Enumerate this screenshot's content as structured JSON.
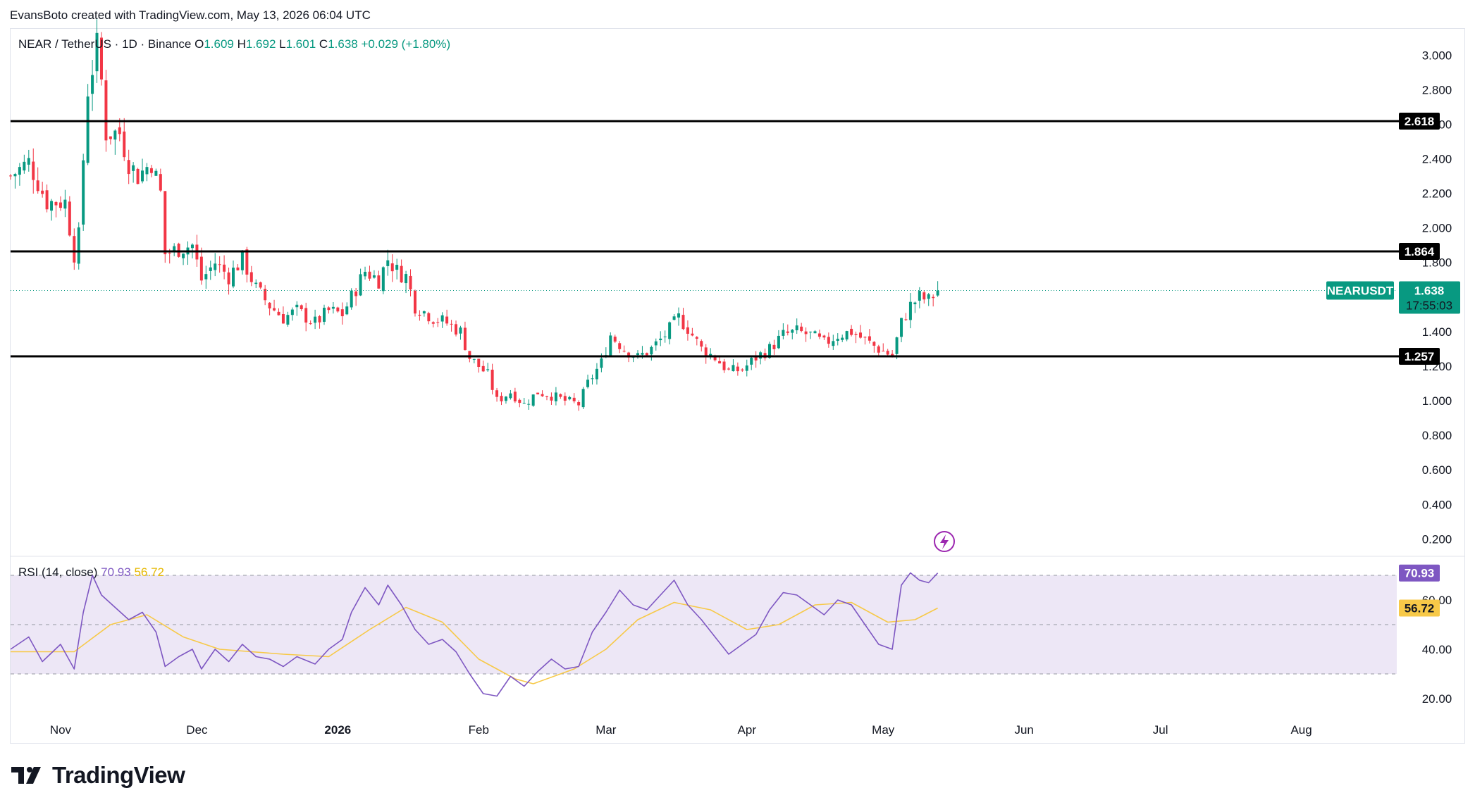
{
  "attribution": "EvansBoto created with TradingView.com, May 13, 2026 06:04 UTC",
  "brand": {
    "name": "TradingView",
    "logo_icon": "tradingview-logo-icon"
  },
  "colors": {
    "up": "#089981",
    "down": "#f23645",
    "rsi": "#7e57c2",
    "rsi_ma": "#f7c948",
    "rsi_band": "#ede7f6",
    "level_line": "#000000",
    "price_tag": "#089981",
    "grid": "#f0f3fa"
  },
  "legend": {
    "symbol": "NEAR / TetherUS · 1D · Binance",
    "o_label": "O",
    "o_value": "1.609",
    "h_label": "H",
    "h_value": "1.692",
    "l_label": "L",
    "l_value": "1.601",
    "c_label": "C",
    "c_value": "1.638",
    "change": "+0.029 (+1.80%)"
  },
  "rsi_legend": {
    "label": "RSI (14, close)",
    "value": "70.93",
    "ma_value": "56.72"
  },
  "alert_icon": "lightning-icon",
  "chart_data": [
    {
      "type": "candlestick",
      "symbol": "NEARUSDT",
      "last_price": "1.638",
      "countdown": "17:55:03",
      "x_axis_labels": [
        "Nov",
        "Dec",
        "2026",
        "Feb",
        "Mar",
        "Apr",
        "May",
        "Jun",
        "Jul",
        "Aug"
      ],
      "x_axis_dates": [
        "2025-11-01",
        "2025-12-01",
        "2026-01-01",
        "2026-02-01",
        "2026-03-01",
        "2026-04-01",
        "2026-05-01",
        "2026-06-01",
        "2026-07-01",
        "2026-08-01"
      ],
      "x_range": [
        "2025-10-21",
        "2026-08-22"
      ],
      "y_ticks": [
        "0.200",
        "0.400",
        "0.600",
        "0.800",
        "1.000",
        "1.200",
        "1.400",
        "1.600",
        "1.800",
        "2.000",
        "2.200",
        "2.400",
        "2.600",
        "2.800",
        "3.000"
      ],
      "ylim": [
        0.1,
        3.15
      ],
      "horizontal_levels": [
        {
          "value": 2.618,
          "label": "2.618"
        },
        {
          "value": 1.864,
          "label": "1.864"
        },
        {
          "value": 1.257,
          "label": "1.257"
        }
      ],
      "grid": false,
      "close_path": [
        [
          "2025-10-21",
          2.3
        ],
        [
          "2025-10-25",
          2.38
        ],
        [
          "2025-10-29",
          2.15
        ],
        [
          "2025-11-02",
          2.15
        ],
        [
          "2025-11-04",
          1.85
        ],
        [
          "2025-11-05",
          1.95
        ],
        [
          "2025-11-06",
          2.4
        ],
        [
          "2025-11-07",
          2.8
        ],
        [
          "2025-11-09",
          3.05
        ],
        [
          "2025-11-10",
          2.85
        ],
        [
          "2025-11-11",
          2.55
        ],
        [
          "2025-11-14",
          2.55
        ],
        [
          "2025-11-16",
          2.38
        ],
        [
          "2025-11-18",
          2.3
        ],
        [
          "2025-11-21",
          2.38
        ],
        [
          "2025-11-23",
          2.2
        ],
        [
          "2025-11-24",
          1.85
        ],
        [
          "2025-11-27",
          1.88
        ],
        [
          "2025-11-30",
          1.9
        ],
        [
          "2025-12-02",
          1.7
        ],
        [
          "2025-12-05",
          1.8
        ],
        [
          "2025-12-08",
          1.72
        ],
        [
          "2025-12-11",
          1.82
        ],
        [
          "2025-12-14",
          1.65
        ],
        [
          "2025-12-17",
          1.55
        ],
        [
          "2025-12-20",
          1.48
        ],
        [
          "2025-12-23",
          1.52
        ],
        [
          "2025-12-27",
          1.45
        ],
        [
          "2025-12-30",
          1.52
        ],
        [
          "2026-01-02",
          1.5
        ],
        [
          "2026-01-04",
          1.6
        ],
        [
          "2026-01-07",
          1.75
        ],
        [
          "2026-01-10",
          1.7
        ],
        [
          "2026-01-12",
          1.82
        ],
        [
          "2026-01-14",
          1.75
        ],
        [
          "2026-01-16",
          1.72
        ],
        [
          "2026-01-18",
          1.55
        ],
        [
          "2026-01-22",
          1.48
        ],
        [
          "2026-01-25",
          1.45
        ],
        [
          "2026-01-28",
          1.4
        ],
        [
          "2026-01-30",
          1.25
        ],
        [
          "2026-02-03",
          1.15
        ],
        [
          "2026-02-05",
          1.0
        ],
        [
          "2026-02-08",
          1.05
        ],
        [
          "2026-02-11",
          0.98
        ],
        [
          "2026-02-14",
          1.05
        ],
        [
          "2026-02-17",
          1.03
        ],
        [
          "2026-02-20",
          1.0
        ],
        [
          "2026-02-23",
          0.98
        ],
        [
          "2026-02-25",
          1.1
        ],
        [
          "2026-02-28",
          1.22
        ],
        [
          "2026-03-02",
          1.38
        ],
        [
          "2026-03-05",
          1.3
        ],
        [
          "2026-03-08",
          1.25
        ],
        [
          "2026-03-11",
          1.3
        ],
        [
          "2026-03-14",
          1.38
        ],
        [
          "2026-03-17",
          1.48
        ],
        [
          "2026-03-19",
          1.42
        ],
        [
          "2026-03-22",
          1.3
        ],
        [
          "2026-03-25",
          1.25
        ],
        [
          "2026-03-28",
          1.17
        ],
        [
          "2026-03-31",
          1.18
        ],
        [
          "2026-04-03",
          1.25
        ],
        [
          "2026-04-06",
          1.3
        ],
        [
          "2026-04-09",
          1.38
        ],
        [
          "2026-04-12",
          1.4
        ],
        [
          "2026-04-15",
          1.38
        ],
        [
          "2026-04-18",
          1.33
        ],
        [
          "2026-04-21",
          1.38
        ],
        [
          "2026-04-24",
          1.4
        ],
        [
          "2026-04-27",
          1.35
        ],
        [
          "2026-04-30",
          1.3
        ],
        [
          "2026-05-03",
          1.26
        ],
        [
          "2026-05-05",
          1.45
        ],
        [
          "2026-05-07",
          1.55
        ],
        [
          "2026-05-09",
          1.6
        ],
        [
          "2026-05-11",
          1.58
        ],
        [
          "2026-05-13",
          1.638
        ]
      ]
    },
    {
      "type": "line",
      "indicator": "RSI",
      "y_ticks": [
        "20.00",
        "40.00",
        "60.00"
      ],
      "ylim": [
        15,
        78
      ],
      "band": [
        30,
        70
      ],
      "mid_line": 50,
      "series": [
        {
          "name": "RSI",
          "value_tag": "70.93",
          "points": [
            [
              "2025-10-21",
              40
            ],
            [
              "2025-10-25",
              45
            ],
            [
              "2025-10-28",
              35
            ],
            [
              "2025-11-01",
              42
            ],
            [
              "2025-11-04",
              32
            ],
            [
              "2025-11-06",
              55
            ],
            [
              "2025-11-08",
              70
            ],
            [
              "2025-11-10",
              62
            ],
            [
              "2025-11-13",
              57
            ],
            [
              "2025-11-16",
              52
            ],
            [
              "2025-11-19",
              55
            ],
            [
              "2025-11-22",
              47
            ],
            [
              "2025-11-24",
              33
            ],
            [
              "2025-11-27",
              37
            ],
            [
              "2025-11-30",
              40
            ],
            [
              "2025-12-02",
              32
            ],
            [
              "2025-12-05",
              40
            ],
            [
              "2025-12-08",
              35
            ],
            [
              "2025-12-11",
              42
            ],
            [
              "2025-12-14",
              37
            ],
            [
              "2025-12-17",
              36
            ],
            [
              "2025-12-20",
              33
            ],
            [
              "2025-12-23",
              37
            ],
            [
              "2025-12-27",
              34
            ],
            [
              "2025-12-30",
              40
            ],
            [
              "2026-01-02",
              44
            ],
            [
              "2026-01-04",
              55
            ],
            [
              "2026-01-07",
              65
            ],
            [
              "2026-01-10",
              58
            ],
            [
              "2026-01-12",
              66
            ],
            [
              "2026-01-15",
              58
            ],
            [
              "2026-01-18",
              48
            ],
            [
              "2026-01-21",
              42
            ],
            [
              "2026-01-24",
              44
            ],
            [
              "2026-01-27",
              39
            ],
            [
              "2026-01-30",
              30
            ],
            [
              "2026-02-02",
              22
            ],
            [
              "2026-02-05",
              21
            ],
            [
              "2026-02-08",
              29
            ],
            [
              "2026-02-11",
              25
            ],
            [
              "2026-02-14",
              31
            ],
            [
              "2026-02-17",
              36
            ],
            [
              "2026-02-20",
              32
            ],
            [
              "2026-02-23",
              33
            ],
            [
              "2026-02-26",
              47
            ],
            [
              "2026-03-01",
              55
            ],
            [
              "2026-03-04",
              64
            ],
            [
              "2026-03-07",
              58
            ],
            [
              "2026-03-10",
              56
            ],
            [
              "2026-03-13",
              62
            ],
            [
              "2026-03-16",
              68
            ],
            [
              "2026-03-19",
              58
            ],
            [
              "2026-03-22",
              52
            ],
            [
              "2026-03-25",
              45
            ],
            [
              "2026-03-28",
              38
            ],
            [
              "2026-03-31",
              42
            ],
            [
              "2026-04-03",
              46
            ],
            [
              "2026-04-06",
              56
            ],
            [
              "2026-04-09",
              63
            ],
            [
              "2026-04-12",
              62
            ],
            [
              "2026-04-15",
              58
            ],
            [
              "2026-04-18",
              54
            ],
            [
              "2026-04-21",
              60
            ],
            [
              "2026-04-24",
              58
            ],
            [
              "2026-04-27",
              50
            ],
            [
              "2026-04-30",
              42
            ],
            [
              "2026-05-03",
              40
            ],
            [
              "2026-05-05",
              66
            ],
            [
              "2026-05-07",
              71
            ],
            [
              "2026-05-09",
              68
            ],
            [
              "2026-05-11",
              67
            ],
            [
              "2026-05-13",
              70.93
            ]
          ]
        },
        {
          "name": "RSI-based MA",
          "value_tag": "56.72",
          "points": [
            [
              "2025-10-21",
              39
            ],
            [
              "2025-11-04",
              39
            ],
            [
              "2025-11-12",
              50
            ],
            [
              "2025-11-20",
              54
            ],
            [
              "2025-11-28",
              45
            ],
            [
              "2025-12-06",
              40
            ],
            [
              "2025-12-20",
              38
            ],
            [
              "2025-12-30",
              37
            ],
            [
              "2026-01-08",
              48
            ],
            [
              "2026-01-16",
              57
            ],
            [
              "2026-01-24",
              51
            ],
            [
              "2026-02-01",
              36
            ],
            [
              "2026-02-09",
              28
            ],
            [
              "2026-02-13",
              26
            ],
            [
              "2026-02-22",
              32
            ],
            [
              "2026-03-01",
              40
            ],
            [
              "2026-03-08",
              52
            ],
            [
              "2026-03-16",
              59
            ],
            [
              "2026-03-24",
              56
            ],
            [
              "2026-04-01",
              48
            ],
            [
              "2026-04-08",
              50
            ],
            [
              "2026-04-16",
              58
            ],
            [
              "2026-04-24",
              59
            ],
            [
              "2026-05-02",
              51
            ],
            [
              "2026-05-08",
              52
            ],
            [
              "2026-05-13",
              56.72
            ]
          ]
        }
      ]
    }
  ]
}
